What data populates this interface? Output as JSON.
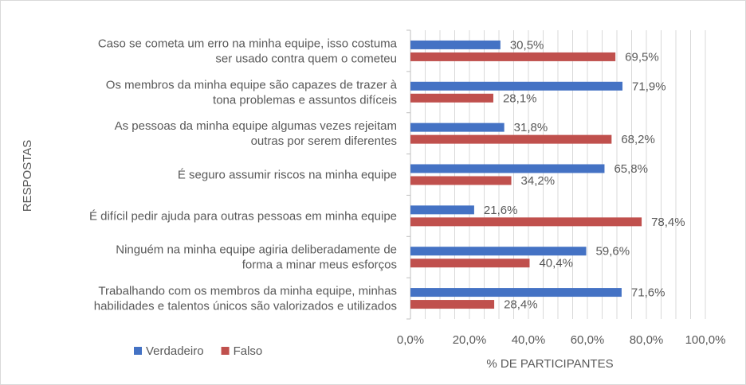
{
  "chart_data": {
    "type": "bar",
    "orientation": "horizontal",
    "categories": [
      [
        "Caso se cometa um erro na minha equipe, isso costuma",
        "ser usado contra quem o cometeu"
      ],
      [
        "Os membros da minha equipe são capazes de trazer à",
        "tona problemas e assuntos difíceis"
      ],
      [
        "As pessoas da minha equipe algumas vezes rejeitam",
        "outras por serem diferentes"
      ],
      [
        "É seguro assumir riscos na minha equipe"
      ],
      [
        "É difícil pedir ajuda para outras pessoas em minha equipe"
      ],
      [
        "Ninguém na minha equipe agiria deliberadamente de",
        "forma a minar meus esforços"
      ],
      [
        "Trabalhando com os membros da minha equipe, minhas",
        "habilidades e talentos únicos são valorizados e utilizados"
      ]
    ],
    "series": [
      {
        "name": "Verdadeiro",
        "color": "#4472C4",
        "values": [
          30.5,
          71.9,
          31.8,
          65.8,
          21.6,
          59.6,
          71.6
        ],
        "labels": [
          "30,5%",
          "71,9%",
          "31,8%",
          "65,8%",
          "21,6%",
          "59,6%",
          "71,6%"
        ]
      },
      {
        "name": "Falso",
        "color": "#C0504D",
        "values": [
          69.5,
          28.1,
          68.2,
          34.2,
          78.4,
          40.4,
          28.4
        ],
        "labels": [
          "69,5%",
          "28,1%",
          "68,2%",
          "34,2%",
          "78,4%",
          "40,4%",
          "28,4%"
        ]
      }
    ],
    "xlim": [
      0,
      100
    ],
    "xticks": [
      0,
      20,
      40,
      60,
      80,
      100
    ],
    "xtick_labels": [
      "0,0%",
      "20,0%",
      "40,0%",
      "60,0%",
      "80,0%",
      "100,0%"
    ],
    "xlabel": "% DE PARTICIPANTES",
    "ylabel": "RESPOSTAS",
    "grid": true,
    "legend_position": "bottom-left"
  }
}
